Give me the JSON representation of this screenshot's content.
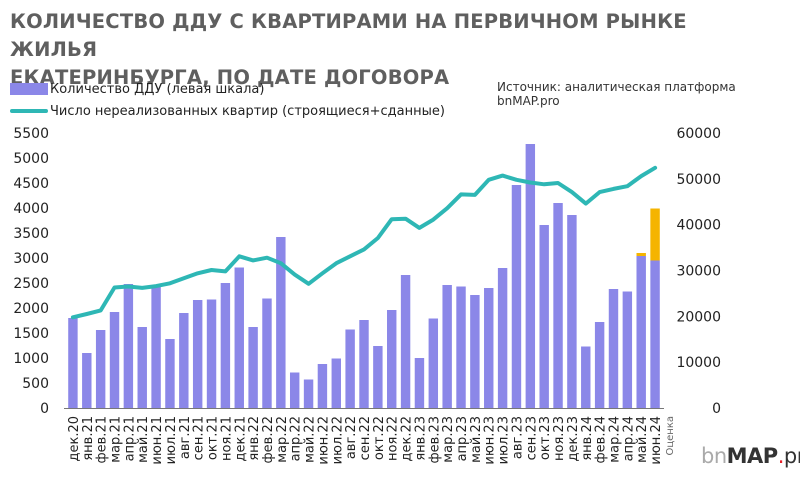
{
  "title_line1": "КОЛИЧЕСТВО ДДУ С КВАРТИРАМИ НА ПЕРВИЧНОМ РЫНКЕ ЖИЛЬЯ",
  "title_line2": "ЕКАТЕРИНБУРГА, ПО ДАТЕ ДОГОВОРА",
  "source": "Источник: аналитическая платформа bnMAP.pro",
  "logo": {
    "part1": "bn",
    "part2": "MAP",
    "part3": ".",
    "part4": "pro"
  },
  "colors": {
    "bars": "#8b87e8",
    "line": "#2eb7b5",
    "estimate": "#f5b400",
    "axis": "#222222"
  },
  "chart_data": {
    "type": "bar+line",
    "categories": [
      "дек.20",
      "янв.21",
      "фев.21",
      "мар.21",
      "апр.21",
      "май.21",
      "июн.21",
      "июл.21",
      "авг.21",
      "сен.21",
      "окт.21",
      "ноя.21",
      "дек.21",
      "янв.22",
      "фев.22",
      "мар.22",
      "апр.22",
      "май.22",
      "июн.22",
      "июл.22",
      "авг.22",
      "сен.22",
      "окт.22",
      "ноя.22",
      "дек.22",
      "янв.23",
      "фев.23",
      "мар.23",
      "апр.23",
      "май.23",
      "июн.23",
      "июл.23",
      "авг.23",
      "сен.23",
      "окт.23",
      "ноя.23",
      "дек.23",
      "янв.24",
      "фев.24",
      "мар.24",
      "апр.24",
      "май.24",
      "июн.24"
    ],
    "estimate_label": "Оценка",
    "left_axis": {
      "min": 0,
      "max": 5500,
      "ticks": [
        0,
        500,
        1000,
        1500,
        2000,
        2500,
        3000,
        3500,
        4000,
        4500,
        5000,
        5500
      ]
    },
    "right_axis": {
      "min": 0,
      "max": 60000,
      "ticks": [
        0,
        10000,
        20000,
        30000,
        40000,
        50000,
        60000
      ]
    },
    "series": [
      {
        "name": "Количество ДДУ (левая шкала)",
        "axis": "left",
        "type": "bar",
        "values": [
          1800,
          1100,
          1560,
          1920,
          2480,
          1620,
          2460,
          1380,
          1900,
          2160,
          2170,
          2500,
          2810,
          1620,
          2190,
          3420,
          710,
          570,
          880,
          990,
          1570,
          1760,
          1240,
          1960,
          2660,
          1000,
          1790,
          2460,
          2430,
          2260,
          2400,
          2800,
          4460,
          5280,
          3660,
          4100,
          3860,
          1230,
          1720,
          2380,
          2330,
          3040,
          2950
        ],
        "estimate_extra": [
          0,
          0,
          0,
          0,
          0,
          0,
          0,
          0,
          0,
          0,
          0,
          0,
          0,
          0,
          0,
          0,
          0,
          0,
          0,
          0,
          0,
          0,
          0,
          0,
          0,
          0,
          0,
          0,
          0,
          0,
          0,
          0,
          0,
          0,
          0,
          0,
          0,
          0,
          0,
          0,
          0,
          60,
          1040
        ]
      },
      {
        "name": "Число нереализованных квартир (строящиеся+сданные)",
        "axis": "right",
        "type": "line",
        "values": [
          19800,
          20500,
          21300,
          26300,
          26500,
          26200,
          26600,
          27200,
          28300,
          29400,
          30100,
          29800,
          33100,
          32200,
          32800,
          31600,
          29100,
          27100,
          29400,
          31600,
          33100,
          34600,
          37100,
          41200,
          41300,
          39300,
          41100,
          43600,
          46600,
          46500,
          49800,
          50700,
          49800,
          49200,
          48800,
          49100,
          47100,
          44600,
          47100,
          47800,
          48400,
          50600,
          52400
        ]
      }
    ]
  }
}
